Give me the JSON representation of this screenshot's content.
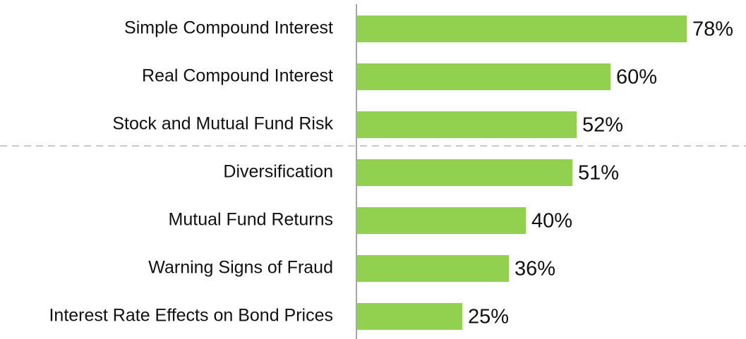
{
  "chart_data": {
    "type": "bar",
    "orientation": "horizontal",
    "categories": [
      "Simple Compound Interest",
      "Real Compound Interest",
      "Stock and Mutual Fund Risk",
      "Diversification",
      "Mutual Fund Returns",
      "Warning Signs of Fraud",
      "Interest Rate Effects on Bond Prices"
    ],
    "values": [
      78,
      60,
      52,
      51,
      40,
      36,
      25
    ],
    "value_labels": [
      "78%",
      "60%",
      "52%",
      "51%",
      "40%",
      "36%",
      "25%"
    ],
    "color": "#92d050",
    "xlim": [
      0,
      100
    ]
  }
}
